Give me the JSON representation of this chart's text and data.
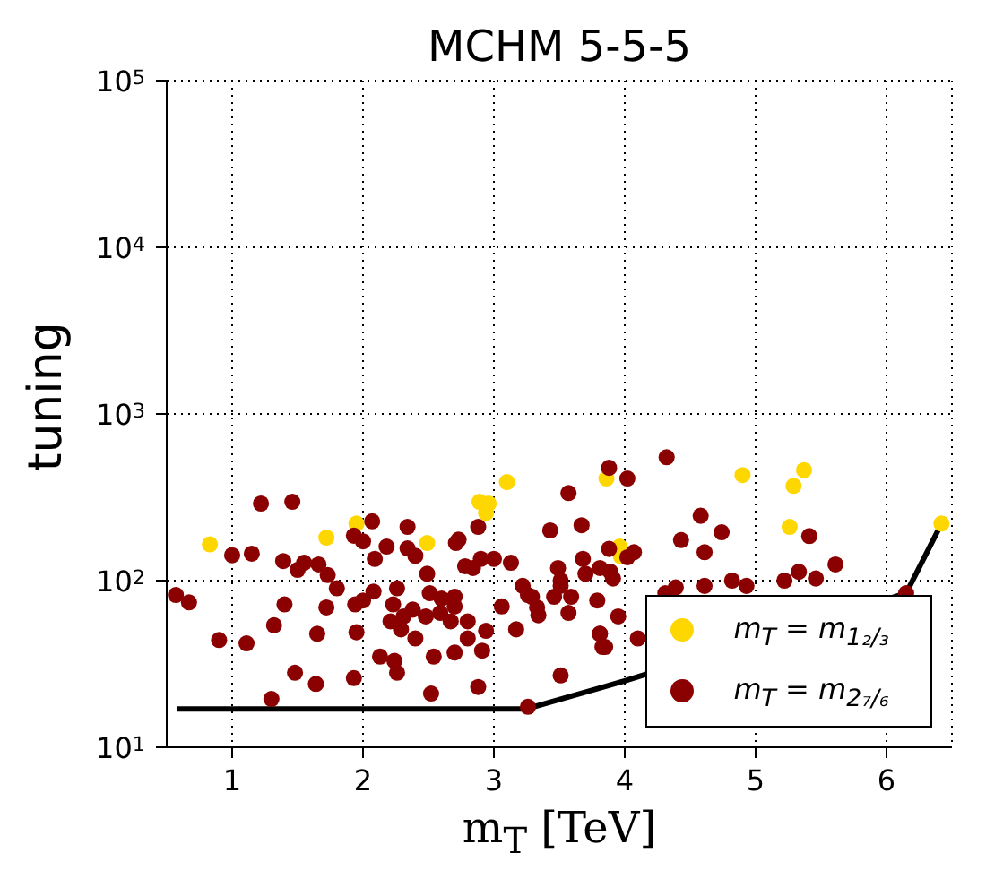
{
  "chart_data": {
    "type": "scatter",
    "title": "MCHM 5-5-5",
    "xlabel": "m$_{T}$ [TeV]",
    "ylabel": "tuning",
    "log": "y",
    "grid": true,
    "legend": "bottom right",
    "marker": "circle",
    "xlim": [
      0.5,
      6.5
    ],
    "xticks": [
      1,
      2,
      3,
      4,
      5,
      6
    ],
    "ylim": [
      10,
      100000
    ],
    "yticks": [
      {
        "value": 10,
        "label": "10$^{1}$"
      },
      {
        "value": 100,
        "label": "10$^{2}$"
      },
      {
        "value": 1000,
        "label": "10$^{3}$"
      },
      {
        "value": 10000,
        "label": "10$^{4}$"
      },
      {
        "value": 100000,
        "label": "10$^{5}$"
      }
    ],
    "series": [
      {
        "name": "m$_{T}$ = m$_{1₂/₃}$",
        "color": "#ffd700",
        "x": [
          0.83,
          1.72,
          1.95,
          3.1,
          2.89,
          2.96,
          2.94,
          2.49,
          3.86,
          4.9,
          5.37,
          5.29,
          5.26,
          3.96,
          3.97,
          6.42
        ],
        "values": [
          165,
          181,
          220,
          390,
          297,
          290,
          255,
          168,
          410,
          430,
          460,
          370,
          210,
          160,
          140,
          220
        ]
      },
      {
        "name": "m$_{T}$ = m$_{2₇/₆}$",
        "color": "#8b0000",
        "x": [
          1.22,
          1.46,
          2.07,
          1.0,
          1.15,
          1.39,
          1.55,
          1.5,
          1.66,
          1.73,
          1.93,
          2.0,
          2.18,
          2.09,
          0.57,
          0.67,
          1.8,
          2.08,
          1.4,
          1.72,
          1.94,
          2.0,
          0.9,
          1.11,
          1.32,
          1.65,
          1.95,
          2.13,
          1.48,
          1.64,
          1.93,
          1.3,
          2.34,
          2.34,
          2.4,
          2.73,
          2.71,
          2.88,
          2.78,
          2.84,
          2.9,
          3.0,
          3.13,
          3.57,
          3.43,
          3.67,
          3.49,
          3.68,
          3.7,
          2.49,
          2.26,
          2.51,
          2.6,
          2.7,
          2.38,
          2.23,
          2.59,
          2.7,
          2.8,
          2.67,
          2.48,
          2.31,
          2.21,
          2.29,
          2.4,
          2.8,
          2.94,
          2.91,
          2.7,
          2.54,
          2.24,
          2.26,
          2.52,
          2.88,
          3.06,
          3.17,
          3.22,
          3.26,
          3.29,
          3.33,
          3.34,
          3.46,
          3.51,
          3.51,
          3.59,
          3.57,
          3.81,
          3.85,
          3.51,
          3.26,
          3.88,
          4.02,
          4.32,
          4.58,
          4.74,
          4.43,
          4.61,
          5.41,
          3.88,
          4.02,
          4.07,
          3.81,
          3.89,
          3.91,
          4.39,
          4.31,
          4.61,
          4.82,
          4.93,
          5.22,
          5.33,
          5.46,
          3.79,
          3.95,
          4.1,
          3.81,
          3.83,
          5.61,
          6.15
        ],
        "values": [
          290,
          297,
          227,
          142,
          145,
          131,
          128,
          116,
          125,
          108,
          186,
          172,
          160,
          135,
          82,
          74,
          90,
          86,
          72,
          69,
          72,
          76,
          44,
          42,
          54,
          48,
          49,
          35,
          28,
          24,
          26,
          19.5,
          210,
          156,
          141,
          176,
          168,
          210,
          122,
          119,
          135,
          135,
          128,
          335,
          200,
          215,
          119,
          135,
          110,
          110,
          90,
          84,
          78,
          80,
          67,
          72,
          64,
          70,
          57,
          57,
          61,
          61,
          57,
          51,
          45,
          45,
          50,
          38,
          37,
          35,
          33,
          28,
          21,
          23,
          70,
          51,
          93,
          82,
          80,
          69,
          62,
          80,
          100,
          93,
          80,
          64,
          48,
          40,
          27,
          17.5,
          475,
          410,
          550,
          245,
          195,
          175,
          148,
          185,
          155,
          138,
          148,
          119,
          113,
          103,
          91,
          84,
          93,
          100,
          93,
          100,
          113,
          103,
          76,
          61,
          45,
          48,
          40,
          125,
          84
        ]
      },
      {
        "type": "line",
        "color": "#000000",
        "marker": "none",
        "x": [
          0.58,
          3.25,
          4.0,
          6.15,
          6.42
        ],
        "values": [
          17,
          17,
          25,
          84,
          220
        ]
      }
    ]
  }
}
